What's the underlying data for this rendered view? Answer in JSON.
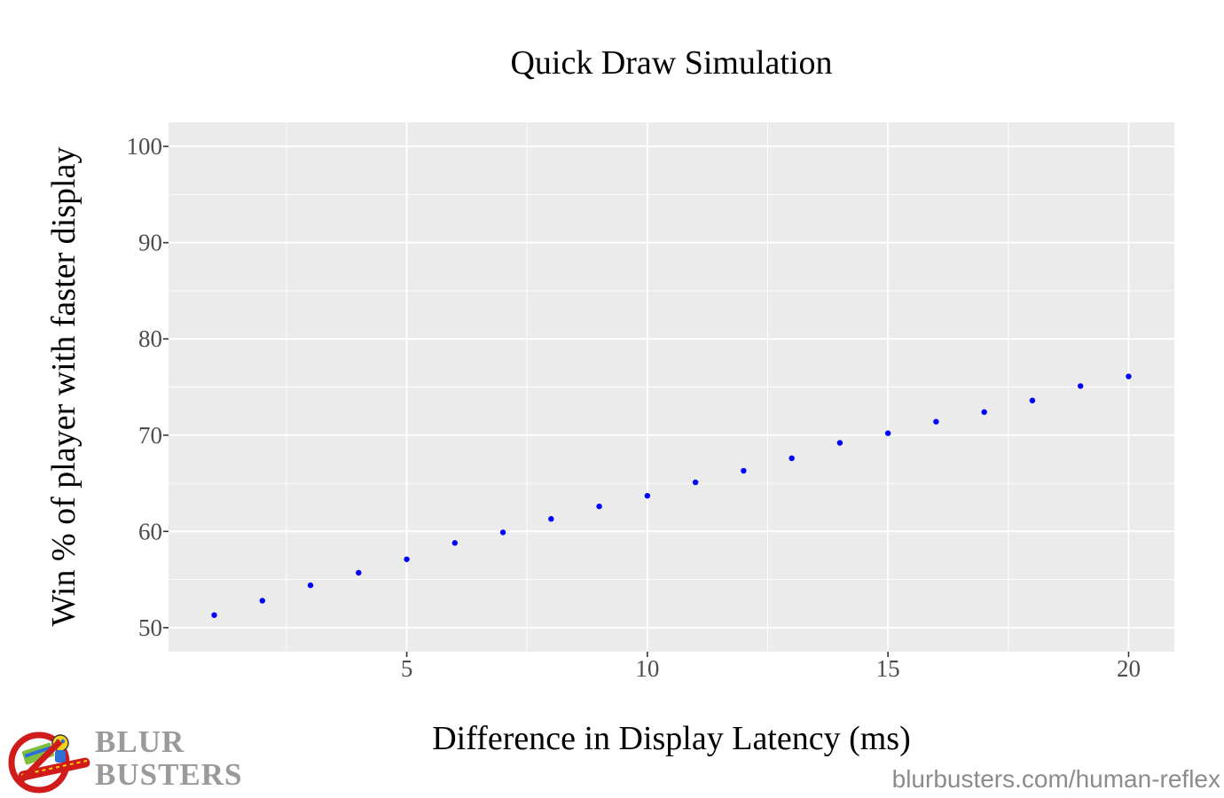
{
  "chart_data": {
    "type": "scatter",
    "title": "Quick Draw Simulation",
    "xlabel": "Difference in Display Latency (ms)",
    "ylabel": "Win % of player with faster display",
    "xlim": [
      0.05,
      20.95
    ],
    "ylim": [
      47.5,
      102.5
    ],
    "x_ticks": [
      {
        "value": 5,
        "label": "5"
      },
      {
        "value": 10,
        "label": "10"
      },
      {
        "value": 15,
        "label": "15"
      },
      {
        "value": 20,
        "label": "20"
      }
    ],
    "y_ticks": [
      {
        "value": 50,
        "label": "50"
      },
      {
        "value": 60,
        "label": "60"
      },
      {
        "value": 70,
        "label": "70"
      },
      {
        "value": 80,
        "label": "80"
      },
      {
        "value": 90,
        "label": "90"
      },
      {
        "value": 100,
        "label": "100"
      }
    ],
    "x_minor_grid": [
      2.5,
      7.5,
      12.5,
      17.5
    ],
    "y_minor_grid": [
      55,
      65,
      75,
      85,
      95
    ],
    "grid": true,
    "legend": "none",
    "point_color": "#0000ff",
    "panel_background": "#ebebeb",
    "grid_color": "#ffffff",
    "points": [
      {
        "x": 1,
        "y": 51.3
      },
      {
        "x": 2,
        "y": 52.8
      },
      {
        "x": 3,
        "y": 54.4
      },
      {
        "x": 4,
        "y": 55.7
      },
      {
        "x": 5,
        "y": 57.1
      },
      {
        "x": 6,
        "y": 58.8
      },
      {
        "x": 7,
        "y": 59.9
      },
      {
        "x": 8,
        "y": 61.3
      },
      {
        "x": 9,
        "y": 62.6
      },
      {
        "x": 10,
        "y": 63.7
      },
      {
        "x": 11,
        "y": 65.1
      },
      {
        "x": 12,
        "y": 66.3
      },
      {
        "x": 13,
        "y": 67.6
      },
      {
        "x": 14,
        "y": 69.2
      },
      {
        "x": 15,
        "y": 70.2
      },
      {
        "x": 16,
        "y": 71.4
      },
      {
        "x": 17,
        "y": 72.4
      },
      {
        "x": 18,
        "y": 73.6
      },
      {
        "x": 19,
        "y": 75.1
      },
      {
        "x": 20,
        "y": 76.1
      }
    ]
  },
  "branding": {
    "logo_icon": "blur-busters-no-blur-logo-icon",
    "line1": "BLUR",
    "line2": "BUSTERS",
    "text_color": "#9a9a9a",
    "watermark": "blurbusters.com/human-reflex"
  }
}
